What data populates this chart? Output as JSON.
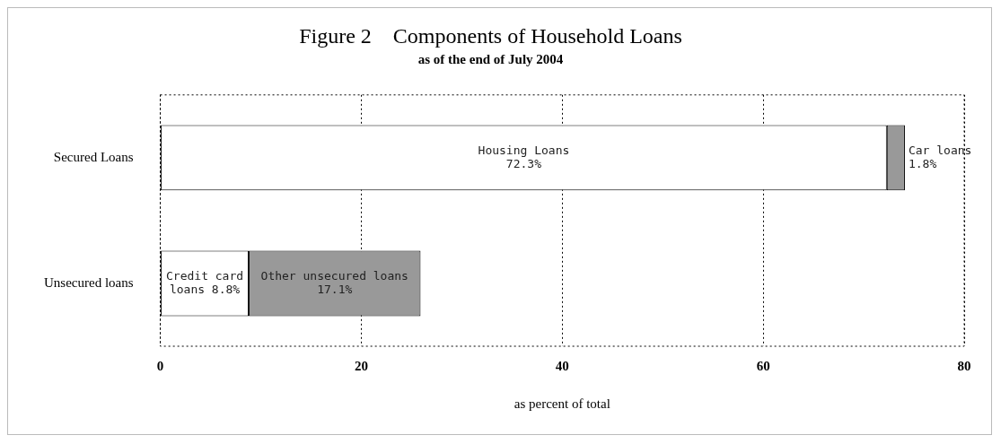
{
  "chart_data": {
    "type": "bar",
    "orientation": "horizontal",
    "stacked": true,
    "title": "Figure 2    Components of Household Loans",
    "subtitle": "as of the end of July 2004",
    "xlabel": "as percent of total",
    "categories": [
      "Secured Loans",
      "Unsecured loans"
    ],
    "series": [
      {
        "color": "#ffffff",
        "values": [
          72.3,
          8.8
        ],
        "value_labels": [
          "Housing Loans\n72.3%",
          "Credit card\nloans 8.8%"
        ]
      },
      {
        "color": "#999999",
        "values": [
          1.8,
          17.1
        ],
        "value_labels": [
          "Car loans\n1.8%",
          "Other unsecured loans\n17.1%"
        ]
      }
    ],
    "xlim": [
      0,
      80
    ],
    "xticks": [
      0,
      20,
      40,
      60,
      80
    ],
    "grid": "x",
    "legend": false
  }
}
